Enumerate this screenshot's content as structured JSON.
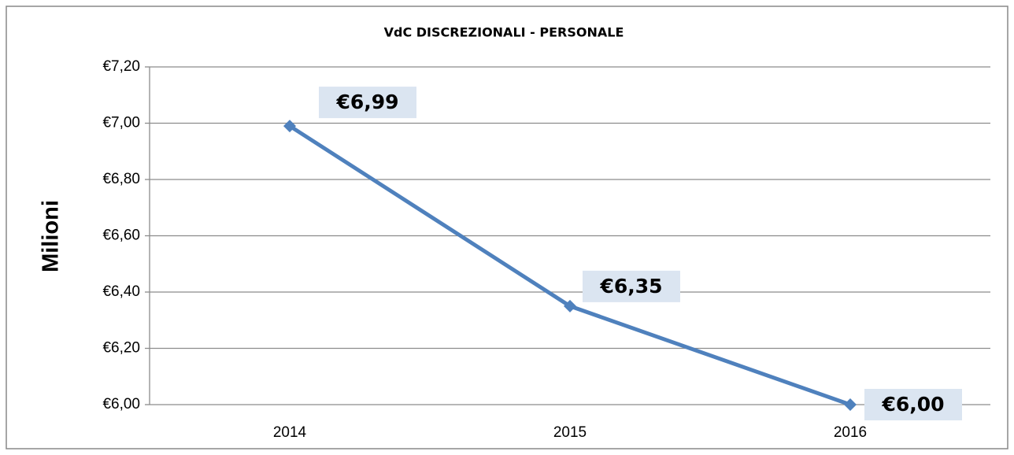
{
  "chart_data": {
    "type": "line",
    "title": "VdC DISCREZIONALI - PERSONALE",
    "y_label": "Milioni",
    "categories": [
      "2014",
      "2015",
      "2016"
    ],
    "series": [
      {
        "name": "VdC",
        "color": "#4f81bd",
        "values": [
          6.99,
          6.35,
          6.0
        ],
        "value_labels": [
          "€6,99",
          "€6,35",
          "€6,00"
        ]
      }
    ],
    "ylim": [
      6.0,
      7.2
    ],
    "yticks": [
      {
        "value": 6.0,
        "label": "€6,00"
      },
      {
        "value": 6.2,
        "label": "€6,20"
      },
      {
        "value": 6.4,
        "label": "€6,40"
      },
      {
        "value": 6.6,
        "label": "€6,60"
      },
      {
        "value": 6.8,
        "label": "€6,80"
      },
      {
        "value": 7.0,
        "label": "€7,00"
      },
      {
        "value": 7.2,
        "label": "€7,20"
      }
    ],
    "grid": true
  }
}
